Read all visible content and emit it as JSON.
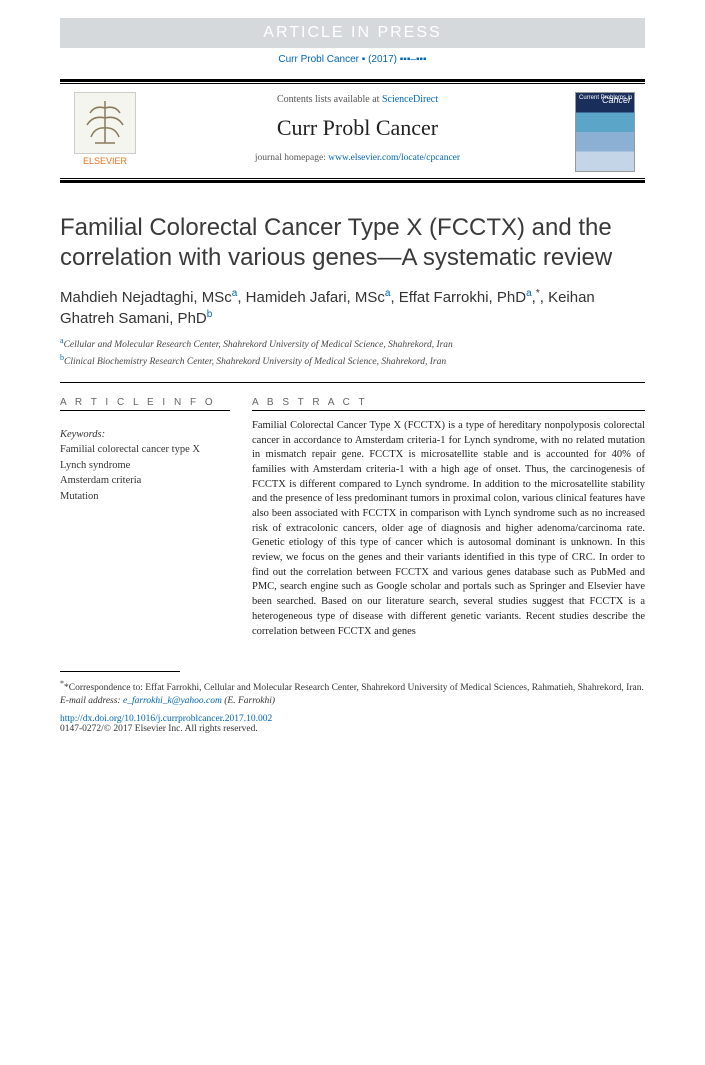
{
  "banner": "ARTICLE IN PRESS",
  "citation": "Curr Probl Cancer ▪ (2017) ▪▪▪–▪▪▪",
  "header": {
    "contents_prefix": "Contents lists available at ",
    "contents_link": "ScienceDirect",
    "journal": "Curr Probl Cancer",
    "homepage_prefix": "journal homepage: ",
    "homepage_link": "www.elsevier.com/locate/cpcancer",
    "publisher": "ELSEVIER",
    "cover_label_top": "Current Problems in",
    "cover_label_main": "Cancer"
  },
  "title": "Familial Colorectal Cancer Type X (FCCTX) and the correlation with various genes—A systematic review",
  "authors": [
    {
      "name": "Mahdieh Nejadtaghi, MSc",
      "marks": "a"
    },
    {
      "name": "Hamideh Jafari, MSc",
      "marks": "a"
    },
    {
      "name": "Effat Farrokhi, PhD",
      "marks": "a,*"
    },
    {
      "name": "Keihan Ghatreh Samani, PhD",
      "marks": "b"
    }
  ],
  "affiliations": [
    {
      "mark": "a",
      "text": "Cellular and Molecular Research Center, Shahrekord University of Medical Science, Shahrekord, Iran"
    },
    {
      "mark": "b",
      "text": "Clinical Biochemistry Research Center, Shahrekord University of Medical Science, Shahrekord, Iran"
    }
  ],
  "article_info_head": "A R T I C L E  I N F O",
  "abstract_head": "A B S T R A C T",
  "keywords_label": "Keywords:",
  "keywords": [
    "Familial colorectal cancer type X",
    "Lynch syndrome",
    "Amsterdam criteria",
    "Mutation"
  ],
  "abstract": "Familial Colorectal Cancer Type X (FCCTX) is a type of hereditary nonpolyposis colorectal cancer in accordance to Amsterdam criteria-1 for Lynch syndrome, with no related mutation in mismatch repair gene. FCCTX is microsatellite stable and is accounted for 40% of families with Amsterdam criteria-1 with a high age of onset. Thus, the carcinogenesis of FCCTX is different compared to Lynch syndrome. In addition to the microsatellite stability and the presence of less predominant tumors in proximal colon, various clinical features have also been associated with FCCTX in comparison with Lynch syndrome such as no increased risk of extracolonic cancers, older age of diagnosis and higher adenoma/carcinoma rate. Genetic etiology of this type of cancer which is autosomal dominant is unknown. In this review, we focus on the genes and their variants identified in this type of CRC. In order to find out the correlation between FCCTX and various genes database such as PubMed and PMC, search engine such as Google scholar and portals such as Springer and Elsevier have been searched. Based on our literature search, several studies suggest that FCCTX is a heterogeneous type of disease with different genetic variants. Recent studies describe the correlation between FCCTX and genes",
  "correspondence": {
    "label": "*Correspondence to: ",
    "text": "Effat Farrokhi, Cellular and Molecular Research Center, Shahrekord University of Medical Sciences, Rahmatieh, Shahrekord, Iran."
  },
  "email": {
    "label": "E-mail address: ",
    "address": "e_farrokhi_k@yahoo.com",
    "person": " (E. Farrokhi)"
  },
  "doi": "http://dx.doi.org/10.1016/j.currproblcancer.2017.10.002",
  "copyright": "0147-0272/© 2017 Elsevier Inc. All rights reserved."
}
